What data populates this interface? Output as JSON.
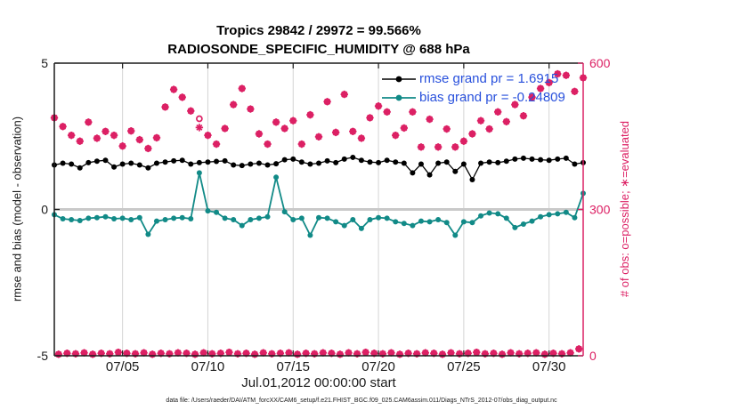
{
  "header": {
    "title_line1": "Tropics 29842 / 29972 = 99.566%",
    "title_line2": "RADIOSONDE_SPECIFIC_HUMIDITY @ 688 hPa"
  },
  "legend": {
    "text_color": "#2850DC",
    "entries": [
      {
        "label": "rmse grand pr = 1.6915",
        "color": "#000000"
      },
      {
        "label": "bias grand pr = -0.24809",
        "color": "#118A87"
      }
    ]
  },
  "footer": {
    "data_file_label": "data file: /Users/raeder/DAI/ATM_forcXX/CAM6_setup/f.e21.FHIST_BGC.f09_025.CAM6assim.011/Diags_NTrS_2012-07/obs_diag_output.nc"
  },
  "chart_data": {
    "type": "line",
    "title": "Tropics 29842 / 29972 = 99.566%",
    "subtitle": "RADIOSONDE_SPECIFIC_HUMIDITY @ 688 hPa",
    "xlabel": "Jul.01,2012 00:00:00 start",
    "colors": {
      "obs_pink": "#DC2064",
      "bias_teal": "#118A87",
      "rmse_black": "#000000",
      "grid_gray": "#d4d4d4",
      "zero_line_gray": "#c9c9c9",
      "axis_black": "#1a1a1a"
    },
    "x_axis": {
      "min_day": 0,
      "max_day": 31,
      "ticks": [
        {
          "day": 4,
          "label": "07/05"
        },
        {
          "day": 9,
          "label": "07/10"
        },
        {
          "day": 14,
          "label": "07/15"
        },
        {
          "day": 19,
          "label": "07/20"
        },
        {
          "day": 24,
          "label": "07/25"
        },
        {
          "day": 29,
          "label": "07/30"
        }
      ]
    },
    "y_left": {
      "min": -5,
      "max": 5,
      "ticks": [
        5,
        0,
        -5
      ],
      "label": "rmse and bias (model - observation)",
      "zero_line": 0
    },
    "y_right": {
      "min": 0,
      "max": 600,
      "ticks": [
        600,
        300,
        0
      ],
      "label": "# of obs: o=possible; ∗=evaluated"
    },
    "lines": [
      {
        "name": "rmse",
        "axis": "left",
        "day_start": 0,
        "day_step": 0.5,
        "values": [
          1.52,
          1.58,
          1.55,
          1.42,
          1.6,
          1.65,
          1.68,
          1.45,
          1.55,
          1.58,
          1.52,
          1.42,
          1.58,
          1.62,
          1.66,
          1.68,
          1.55,
          1.6,
          1.62,
          1.64,
          1.66,
          1.52,
          1.5,
          1.55,
          1.58,
          1.52,
          1.56,
          1.7,
          1.72,
          1.62,
          1.55,
          1.58,
          1.66,
          1.6,
          1.72,
          1.78,
          1.68,
          1.62,
          1.6,
          1.68,
          1.62,
          1.58,
          1.25,
          1.55,
          1.18,
          1.58,
          1.62,
          1.3,
          1.55,
          1.02,
          1.58,
          1.62,
          1.6,
          1.65,
          1.72,
          1.75,
          1.72,
          1.7,
          1.68,
          1.72,
          1.75,
          1.55,
          1.6
        ]
      },
      {
        "name": "bias",
        "axis": "left",
        "day_start": 0,
        "day_step": 0.5,
        "values": [
          -0.18,
          -0.32,
          -0.35,
          -0.38,
          -0.3,
          -0.28,
          -0.25,
          -0.32,
          -0.3,
          -0.35,
          -0.28,
          -0.85,
          -0.4,
          -0.35,
          -0.3,
          -0.28,
          -0.32,
          1.25,
          -0.05,
          -0.1,
          -0.3,
          -0.35,
          -0.55,
          -0.35,
          -0.3,
          -0.25,
          1.1,
          -0.08,
          -0.35,
          -0.3,
          -0.88,
          -0.28,
          -0.3,
          -0.42,
          -0.55,
          -0.35,
          -0.65,
          -0.35,
          -0.28,
          -0.3,
          -0.42,
          -0.48,
          -0.55,
          -0.4,
          -0.42,
          -0.35,
          -0.45,
          -0.88,
          -0.42,
          -0.45,
          -0.22,
          -0.12,
          -0.15,
          -0.3,
          -0.62,
          -0.5,
          -0.4,
          -0.25,
          -0.18,
          -0.15,
          -0.1,
          -0.28,
          0.55
        ]
      }
    ],
    "obs_bins": [
      {
        "name": "synoptic-00z-12z",
        "axis": "right",
        "day_start": 0,
        "day_step": 0.5,
        "possible": [
          488,
          470,
          452,
          440,
          479,
          446,
          460,
          452,
          430,
          461,
          443,
          425,
          447,
          510,
          546,
          530,
          502,
          486,
          452,
          434,
          466,
          515,
          548,
          506,
          455,
          434,
          479,
          466,
          482,
          434,
          494,
          449,
          521,
          458,
          536,
          460,
          446,
          488,
          512,
          500,
          452,
          467,
          500,
          428,
          485,
          428,
          465,
          428,
          440,
          455,
          482,
          465,
          500,
          480,
          515,
          492,
          530,
          548,
          560,
          578,
          575,
          542,
          570
        ],
        "evaluated": [
          488,
          470,
          452,
          440,
          479,
          446,
          460,
          452,
          430,
          461,
          443,
          425,
          447,
          510,
          546,
          530,
          502,
          468,
          452,
          434,
          466,
          515,
          548,
          506,
          455,
          434,
          479,
          466,
          482,
          434,
          494,
          449,
          521,
          458,
          536,
          460,
          446,
          488,
          512,
          500,
          452,
          467,
          500,
          428,
          485,
          428,
          465,
          428,
          440,
          455,
          482,
          465,
          500,
          480,
          515,
          492,
          530,
          548,
          560,
          578,
          575,
          542,
          570
        ]
      },
      {
        "name": "offhours-06z-18z",
        "axis": "right",
        "day_start": 0.25,
        "day_step": 0.5,
        "possible": [
          3,
          5,
          4,
          6,
          3,
          5,
          4,
          7,
          5,
          4,
          6,
          3,
          5,
          4,
          6,
          5,
          3,
          6,
          4,
          5,
          7,
          4,
          5,
          3,
          6,
          4,
          5,
          6,
          3,
          5,
          4,
          6,
          5,
          3,
          6,
          4,
          7,
          5,
          4,
          6,
          3,
          5,
          4,
          6,
          5,
          3,
          6,
          4,
          5,
          7,
          4,
          5,
          3,
          6,
          4,
          5,
          6,
          3,
          5,
          4,
          6,
          14
        ]
      }
    ],
    "legend_position": "top-right-inside",
    "grid": "vertical-at-x-ticks"
  }
}
